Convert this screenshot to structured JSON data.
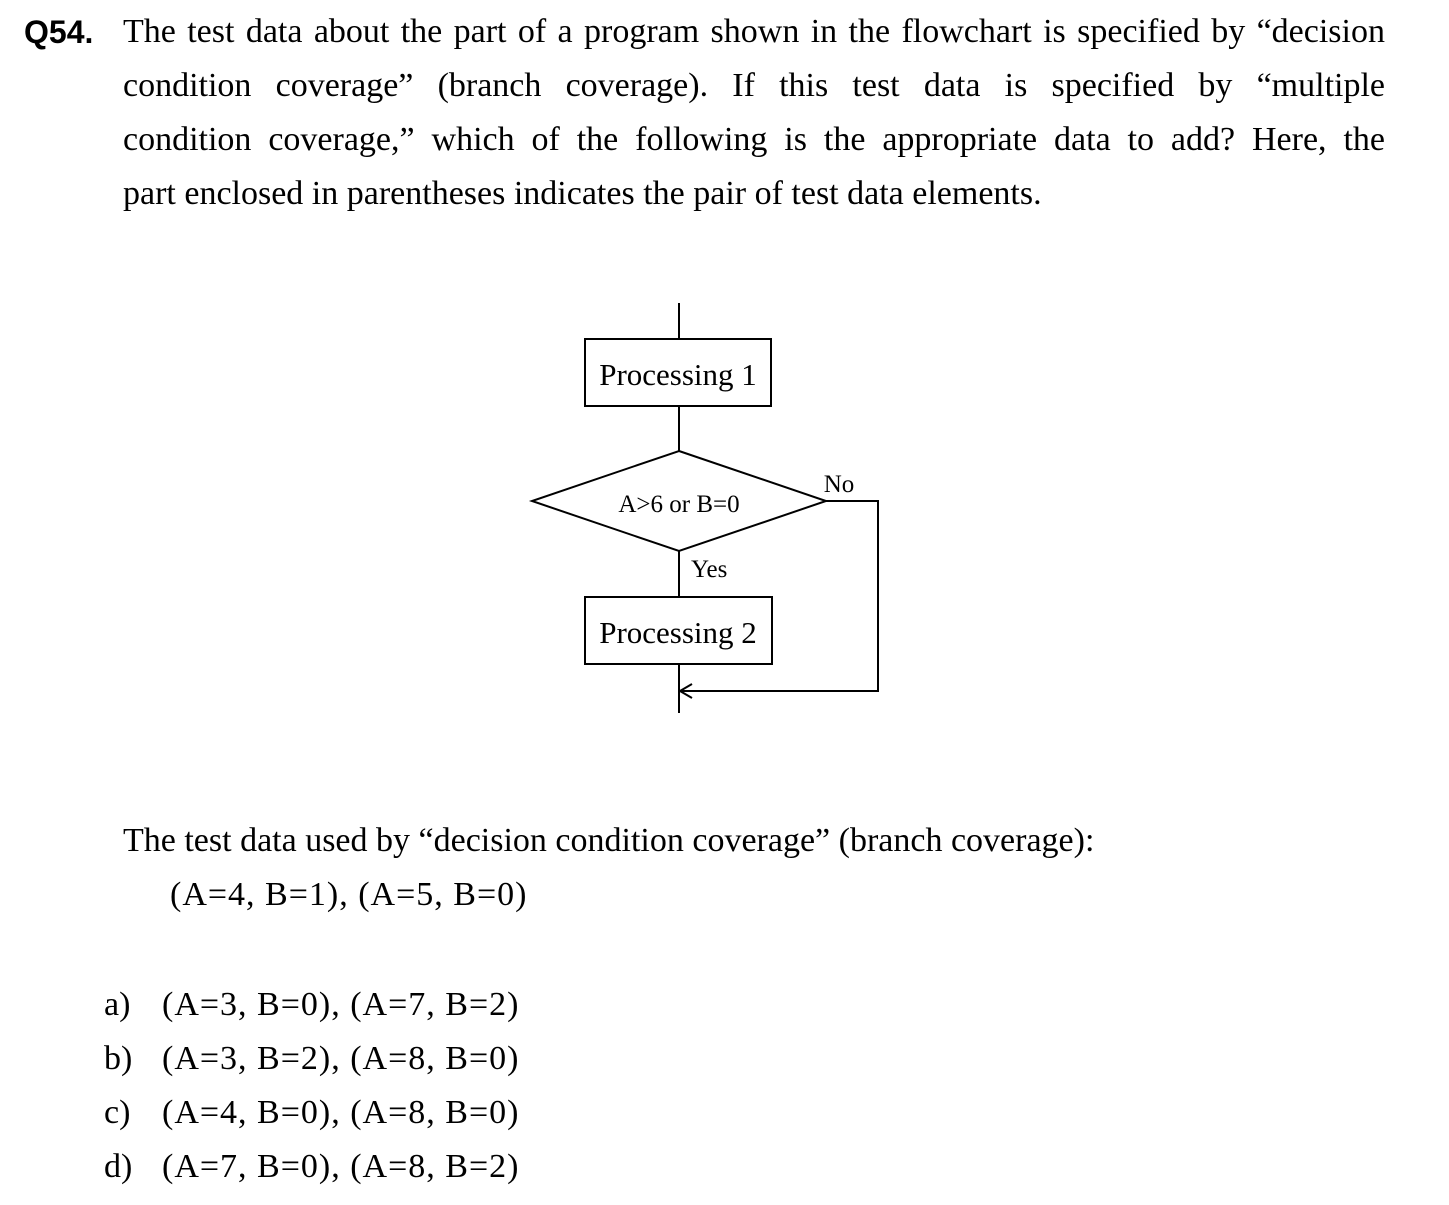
{
  "question": {
    "number": "Q54.",
    "lines": [
      "The test data about the part of a program shown in the flowchart is specified by “decision",
      "condition coverage” (branch coverage).  If this test data is specified by “multiple",
      "condition coverage,” which of the following is the appropriate data to add?  Here, the",
      "part enclosed in parentheses indicates the pair of test data elements."
    ]
  },
  "flowchart": {
    "process1_label": "Processing 1",
    "decision_label": "A>6 or B=0",
    "no_label": "No",
    "yes_label": "Yes",
    "process2_label": "Processing 2"
  },
  "given": {
    "title": "The test data used by “decision condition coverage” (branch coverage):",
    "data": "(A=4, B=1), (A=5, B=0)"
  },
  "options": [
    {
      "label": "a)",
      "text": "(A=3, B=0), (A=7, B=2)"
    },
    {
      "label": "b)",
      "text": "(A=3, B=2), (A=8, B=0)"
    },
    {
      "label": "c)",
      "text": "(A=4, B=0), (A=8, B=0)"
    },
    {
      "label": "d)",
      "text": "(A=7, B=0), (A=8, B=2)"
    }
  ]
}
